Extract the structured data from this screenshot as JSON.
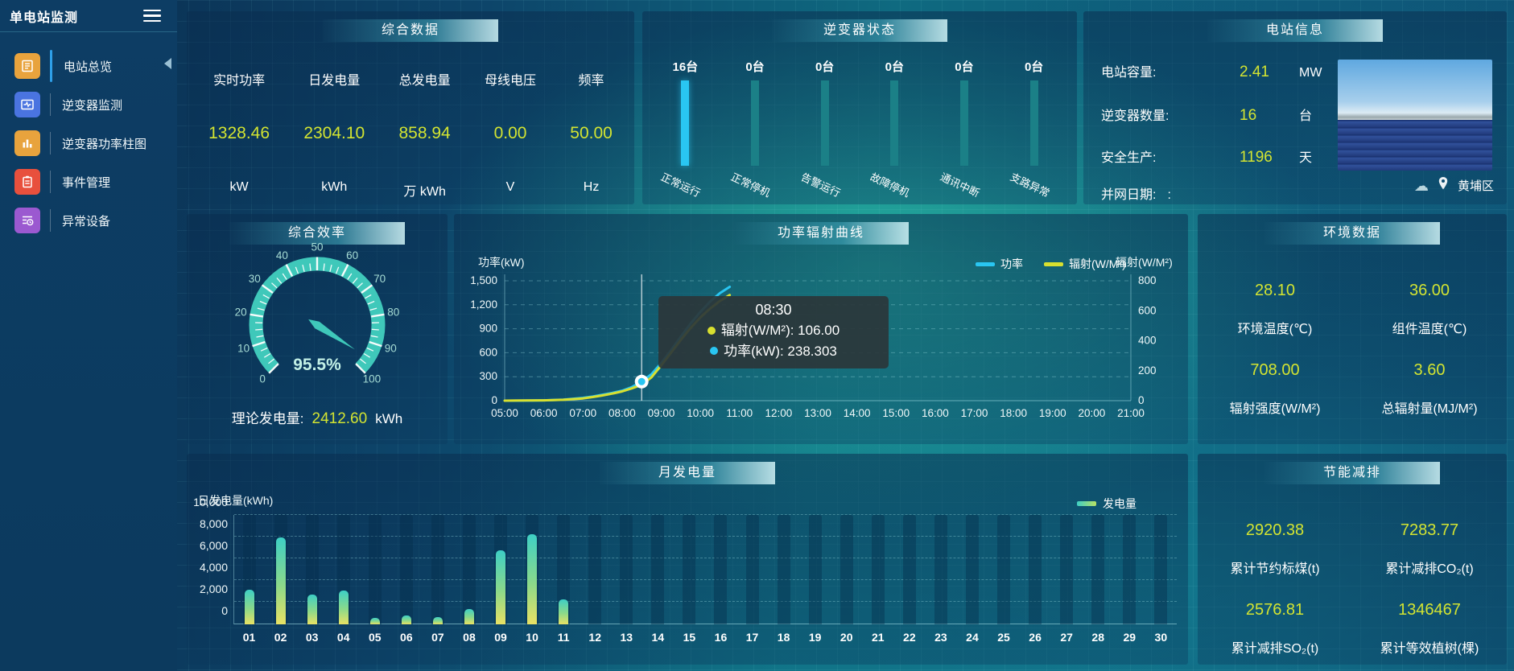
{
  "app": {
    "title": "单电站监测"
  },
  "icons": {
    "menu": "hamburger-icon",
    "collapse": "sidebar-collapse-arrow-icon",
    "weather": "cloud-icon",
    "location": "location-pin-icon"
  },
  "colors": {
    "accent_value": "#d3e431",
    "power_line": "#29c6f2",
    "radiation_line": "#d8e02f",
    "gauge": "#3fc8ba",
    "inverter_active_bar": "#29c6f2",
    "inverter_idle_bar": "#1b8087",
    "bar_gradient_top": "#3ecfc5",
    "bar_gradient_bottom": "#e8e164"
  },
  "sidebar": {
    "items": [
      {
        "label": "电站总览",
        "icon": "station-overview-icon",
        "color": "#e8a33d",
        "active": true
      },
      {
        "label": "逆变器监测",
        "icon": "inverter-monitor-icon",
        "color": "#4a74e0",
        "active": false
      },
      {
        "label": "逆变器功率柱图",
        "icon": "inverter-power-bars-icon",
        "color": "#e8a33d",
        "active": false
      },
      {
        "label": "事件管理",
        "icon": "event-management-icon",
        "color": "#e8503d",
        "active": false
      },
      {
        "label": "异常设备",
        "icon": "abnormal-device-icon",
        "color": "#9b59d0",
        "active": false
      }
    ]
  },
  "overview": {
    "title": "综合数据",
    "metrics": [
      {
        "label": "实时功率",
        "value": "1328.46",
        "unit": "kW"
      },
      {
        "label": "日发电量",
        "value": "2304.10",
        "unit": "kWh"
      },
      {
        "label": "总发电量",
        "value": "858.94",
        "unit": "万 kWh"
      },
      {
        "label": "母线电压",
        "value": "0.00",
        "unit": "V"
      },
      {
        "label": "频率",
        "value": "50.00",
        "unit": "Hz"
      }
    ]
  },
  "inverter_status": {
    "title": "逆变器状态",
    "items": [
      {
        "count": "16台",
        "label": "正常运行",
        "active": true
      },
      {
        "count": "0台",
        "label": "正常停机",
        "active": false
      },
      {
        "count": "0台",
        "label": "告警运行",
        "active": false
      },
      {
        "count": "0台",
        "label": "故障停机",
        "active": false
      },
      {
        "count": "0台",
        "label": "通讯中断",
        "active": false
      },
      {
        "count": "0台",
        "label": "支路异常",
        "active": false
      }
    ]
  },
  "station_info": {
    "title": "电站信息",
    "rows": [
      {
        "label": "电站容量:",
        "value": "2.41",
        "unit": "MW"
      },
      {
        "label": "逆变器数量:",
        "value": "16",
        "unit": "台"
      },
      {
        "label": "安全生产:",
        "value": "1196",
        "unit": "天"
      },
      {
        "label": "并网日期:",
        "value": ":",
        "unit": ""
      }
    ],
    "location": "黄埔区"
  },
  "efficiency": {
    "title": "综合效率",
    "value": 95.5,
    "percent_text": "95.5%",
    "min": 0,
    "max": 100,
    "tick_labels": [
      "0",
      "10",
      "20",
      "30",
      "40",
      "50",
      "60",
      "70",
      "80",
      "90",
      "100"
    ],
    "theory_label": "理论发电量:",
    "theory_value": "2412.60",
    "theory_unit": "kWh"
  },
  "env": {
    "title": "环境数据",
    "items": [
      {
        "value": "28.10",
        "label": "环境温度(℃)"
      },
      {
        "value": "36.00",
        "label": "组件温度(℃)"
      },
      {
        "value": "708.00",
        "label": "辐射强度(W/M²)"
      },
      {
        "value": "3.60",
        "label": "总辐射量(MJ/M²)"
      }
    ]
  },
  "saving": {
    "title": "节能减排",
    "items": [
      {
        "value": "2920.38",
        "label": "累计节约标煤(t)"
      },
      {
        "value": "7283.77",
        "label": "累计减排CO₂(t)"
      },
      {
        "value": "2576.81",
        "label": "累计减排SO₂(t)"
      },
      {
        "value": "1346467",
        "label": "累计等效植树(棵)"
      }
    ]
  },
  "chart_data": [
    {
      "type": "line",
      "title": "功率辐射曲线",
      "x_axis": {
        "labels": [
          "05:00",
          "06:00",
          "07:00",
          "08:00",
          "09:00",
          "10:00",
          "11:00",
          "12:00",
          "13:00",
          "14:00",
          "15:00",
          "16:00",
          "17:00",
          "18:00",
          "19:00",
          "20:00",
          "21:00"
        ],
        "min_hour": 5,
        "max_hour": 21
      },
      "left_axis": {
        "name": "功率(kW)",
        "ticks": [
          "0",
          "300",
          "600",
          "900",
          "1,200",
          "1,500"
        ],
        "max": 1500
      },
      "right_axis": {
        "name": "辐射(W/M²)",
        "ticks": [
          "0",
          "200",
          "400",
          "600",
          "800"
        ],
        "max": 800
      },
      "legend": [
        {
          "name": "功率",
          "color": "#29c6f2"
        },
        {
          "name": "辐射(W/M²)",
          "color": "#d8e02f"
        }
      ],
      "grid": true,
      "series": [
        {
          "name": "功率",
          "axis": "left",
          "color": "#29c6f2",
          "points": [
            [
              5,
              0
            ],
            [
              5.5,
              1
            ],
            [
              6,
              4
            ],
            [
              6.5,
              12
            ],
            [
              7,
              35
            ],
            [
              7.25,
              52
            ],
            [
              7.5,
              75
            ],
            [
              7.75,
              98
            ],
            [
              8,
              125
            ],
            [
              8.25,
              170
            ],
            [
              8.5,
              238.3
            ],
            [
              8.75,
              330
            ],
            [
              9,
              470
            ],
            [
              9.25,
              630
            ],
            [
              9.5,
              800
            ],
            [
              9.75,
              965
            ],
            [
              10,
              1110
            ],
            [
              10.25,
              1240
            ],
            [
              10.5,
              1345
            ],
            [
              10.75,
              1425
            ]
          ]
        },
        {
          "name": "辐射(W/M²)",
          "axis": "right",
          "color": "#d8e02f",
          "points": [
            [
              5,
              0
            ],
            [
              5.5,
              1
            ],
            [
              6,
              2
            ],
            [
              6.5,
              6
            ],
            [
              7,
              15
            ],
            [
              7.25,
              24
            ],
            [
              7.5,
              35
            ],
            [
              7.75,
              47
            ],
            [
              8,
              62
            ],
            [
              8.25,
              82
            ],
            [
              8.5,
              106
            ],
            [
              8.75,
              155
            ],
            [
              9,
              235
            ],
            [
              9.25,
              320
            ],
            [
              9.5,
              405
            ],
            [
              9.75,
              485
            ],
            [
              10,
              555
            ],
            [
              10.25,
              615
            ],
            [
              10.5,
              665
            ],
            [
              10.75,
              705
            ]
          ]
        }
      ],
      "tooltip": {
        "time": "08:30",
        "hour": 8.5,
        "power_value": 238.303,
        "lines": [
          {
            "series": "辐射(W/M²)",
            "color": "#d8e02f",
            "text": "辐射(W/M²): 106.00"
          },
          {
            "series": "功率",
            "color": "#29c6f2",
            "text": "功率(kW): 238.303"
          }
        ]
      }
    },
    {
      "type": "bar",
      "title": "月发电量",
      "ylabel": "日发电量(kWh)",
      "legend": "发电量",
      "y_ticks": [
        "0",
        "2,000",
        "4,000",
        "6,000",
        "8,000",
        "10,000"
      ],
      "ymax": 10000,
      "categories": [
        "01",
        "02",
        "03",
        "04",
        "05",
        "06",
        "07",
        "08",
        "09",
        "10",
        "11",
        "12",
        "13",
        "14",
        "15",
        "16",
        "17",
        "18",
        "19",
        "20",
        "21",
        "22",
        "23",
        "24",
        "25",
        "26",
        "27",
        "28",
        "29",
        "30"
      ],
      "values": [
        3130,
        7930,
        2710,
        3070,
        580,
        790,
        680,
        1430,
        6800,
        8250,
        2280,
        0,
        0,
        0,
        0,
        0,
        0,
        0,
        0,
        0,
        0,
        0,
        0,
        0,
        0,
        0,
        0,
        0,
        0,
        0
      ]
    }
  ]
}
